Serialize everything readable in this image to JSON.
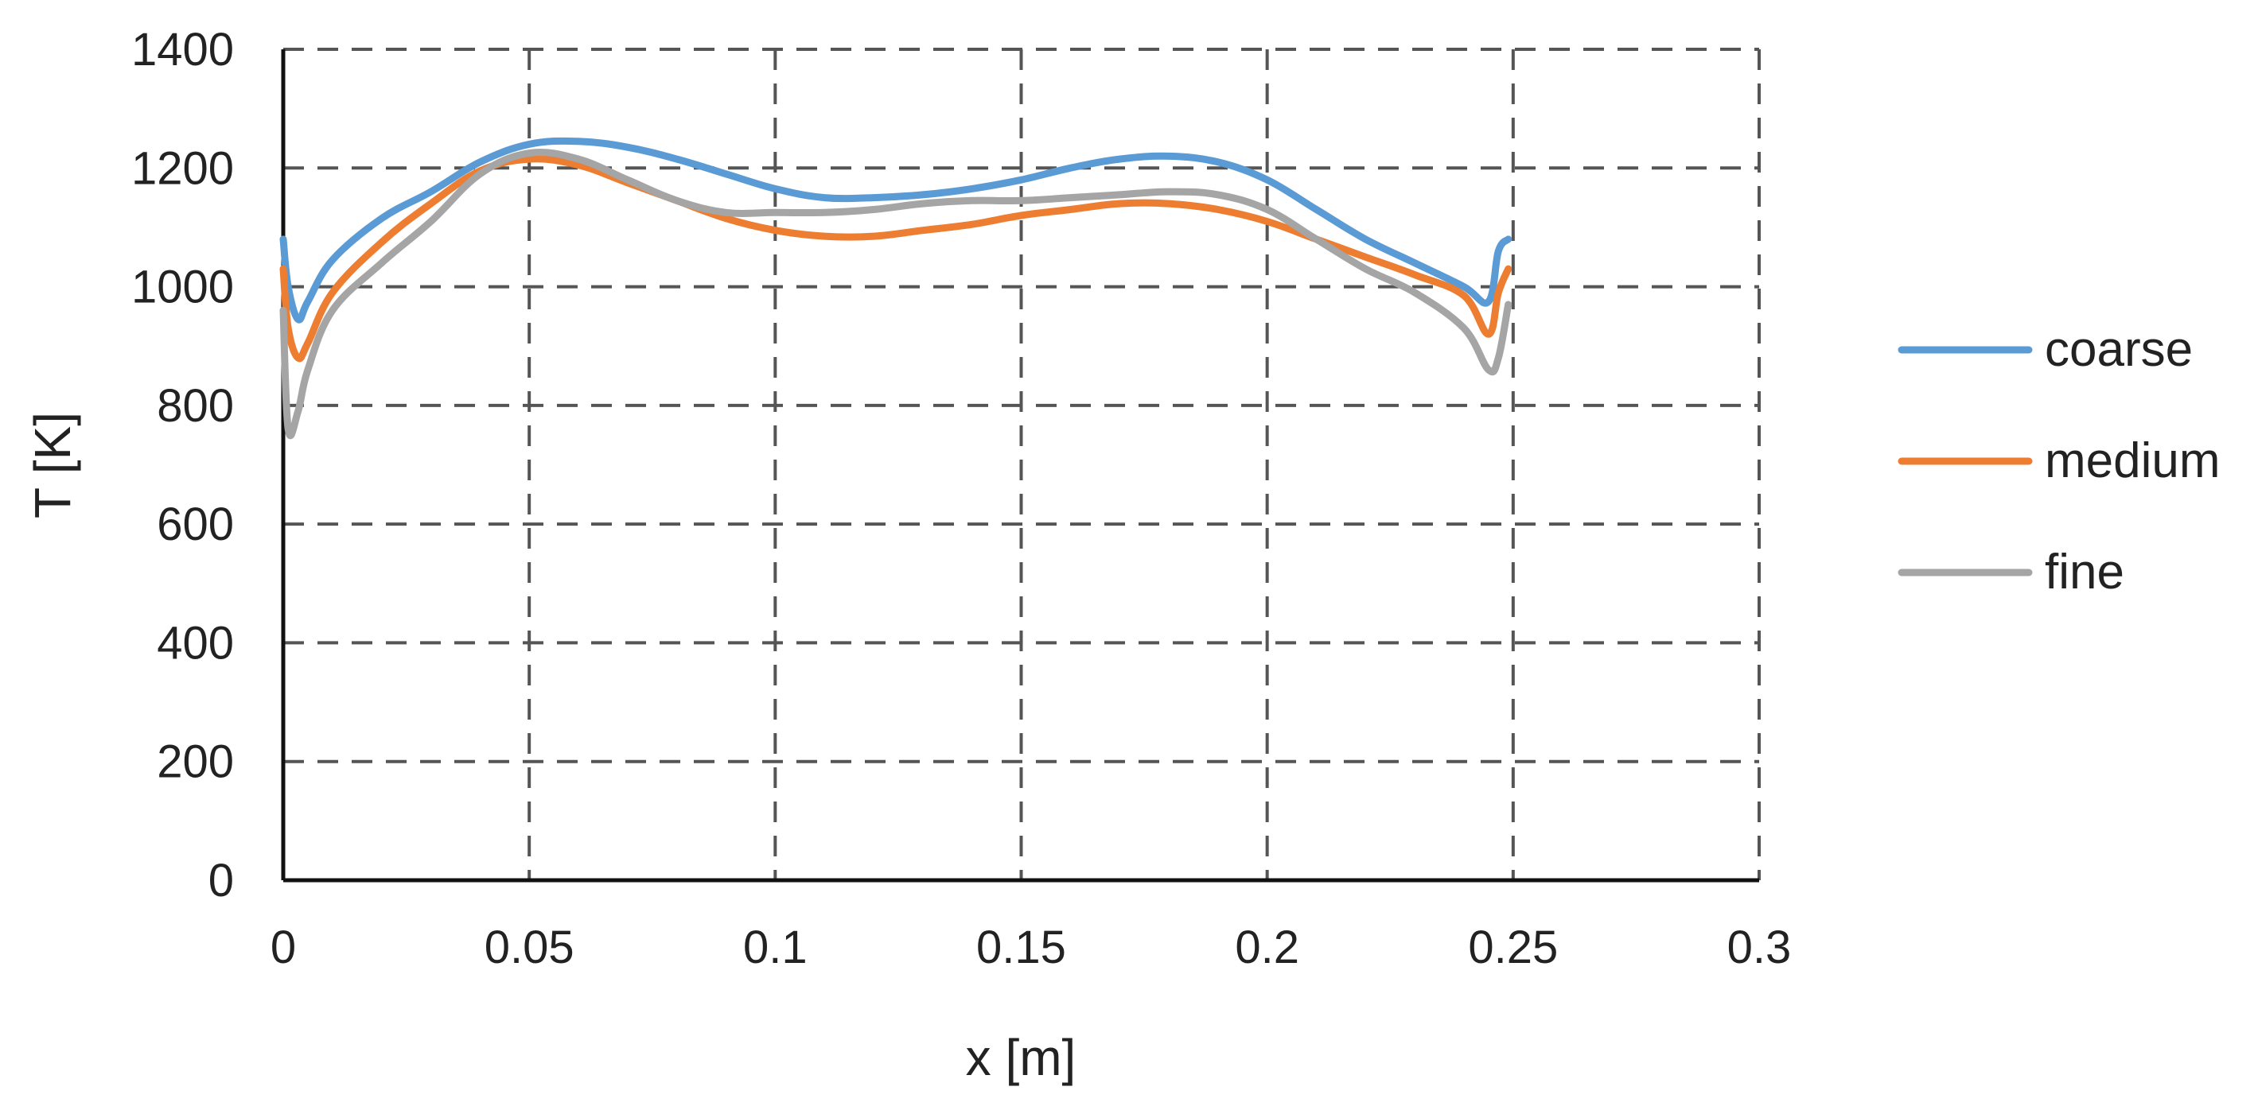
{
  "chart_data": {
    "type": "line",
    "title": "",
    "xlabel": "x [m]",
    "ylabel": "T [K]",
    "xlim": [
      0,
      0.3
    ],
    "ylim": [
      0,
      1400
    ],
    "xticks": [
      0,
      0.05,
      0.1,
      0.15,
      0.2,
      0.25,
      0.3
    ],
    "xtick_labels": [
      "0",
      "0.05",
      "0.1",
      "0.15",
      "0.2",
      "0.25",
      "0.3"
    ],
    "yticks": [
      0,
      200,
      400,
      600,
      800,
      1000,
      1200,
      1400
    ],
    "ytick_labels": [
      "0",
      "200",
      "400",
      "600",
      "800",
      "1000",
      "1200",
      "1400"
    ],
    "grid": true,
    "legend_position": "right",
    "series": [
      {
        "name": "coarse",
        "color": "#5B9BD5",
        "x": [
          0,
          0.001,
          0.003,
          0.005,
          0.01,
          0.02,
          0.03,
          0.04,
          0.05,
          0.06,
          0.07,
          0.08,
          0.09,
          0.1,
          0.11,
          0.12,
          0.13,
          0.14,
          0.15,
          0.16,
          0.17,
          0.18,
          0.19,
          0.2,
          0.21,
          0.22,
          0.23,
          0.24,
          0.245,
          0.247,
          0.249
        ],
        "y": [
          1080,
          1000,
          945,
          975,
          1045,
          1115,
          1160,
          1210,
          1240,
          1245,
          1235,
          1215,
          1190,
          1165,
          1150,
          1150,
          1155,
          1165,
          1180,
          1200,
          1215,
          1220,
          1210,
          1180,
          1130,
          1080,
          1040,
          1000,
          975,
          1060,
          1080
        ]
      },
      {
        "name": "medium",
        "color": "#ED7D31",
        "x": [
          0,
          0.001,
          0.003,
          0.005,
          0.01,
          0.02,
          0.03,
          0.04,
          0.05,
          0.06,
          0.07,
          0.08,
          0.09,
          0.1,
          0.11,
          0.12,
          0.13,
          0.14,
          0.15,
          0.16,
          0.17,
          0.18,
          0.19,
          0.2,
          0.21,
          0.22,
          0.23,
          0.24,
          0.245,
          0.247,
          0.249
        ],
        "y": [
          1030,
          930,
          880,
          905,
          990,
          1075,
          1140,
          1195,
          1215,
          1205,
          1175,
          1145,
          1115,
          1095,
          1085,
          1085,
          1095,
          1105,
          1120,
          1130,
          1140,
          1140,
          1130,
          1110,
          1080,
          1050,
          1020,
          985,
          920,
          990,
          1030
        ]
      },
      {
        "name": "fine",
        "color": "#A5A5A5",
        "x": [
          0,
          0.001,
          0.003,
          0.005,
          0.01,
          0.02,
          0.03,
          0.04,
          0.05,
          0.06,
          0.07,
          0.08,
          0.09,
          0.1,
          0.11,
          0.12,
          0.13,
          0.14,
          0.15,
          0.16,
          0.17,
          0.18,
          0.19,
          0.2,
          0.21,
          0.22,
          0.23,
          0.24,
          0.245,
          0.247,
          0.249
        ],
        "y": [
          960,
          760,
          790,
          860,
          960,
          1040,
          1110,
          1190,
          1225,
          1215,
          1180,
          1145,
          1125,
          1125,
          1125,
          1130,
          1140,
          1145,
          1145,
          1150,
          1155,
          1160,
          1155,
          1130,
          1080,
          1030,
          990,
          930,
          860,
          880,
          970
        ]
      }
    ]
  }
}
